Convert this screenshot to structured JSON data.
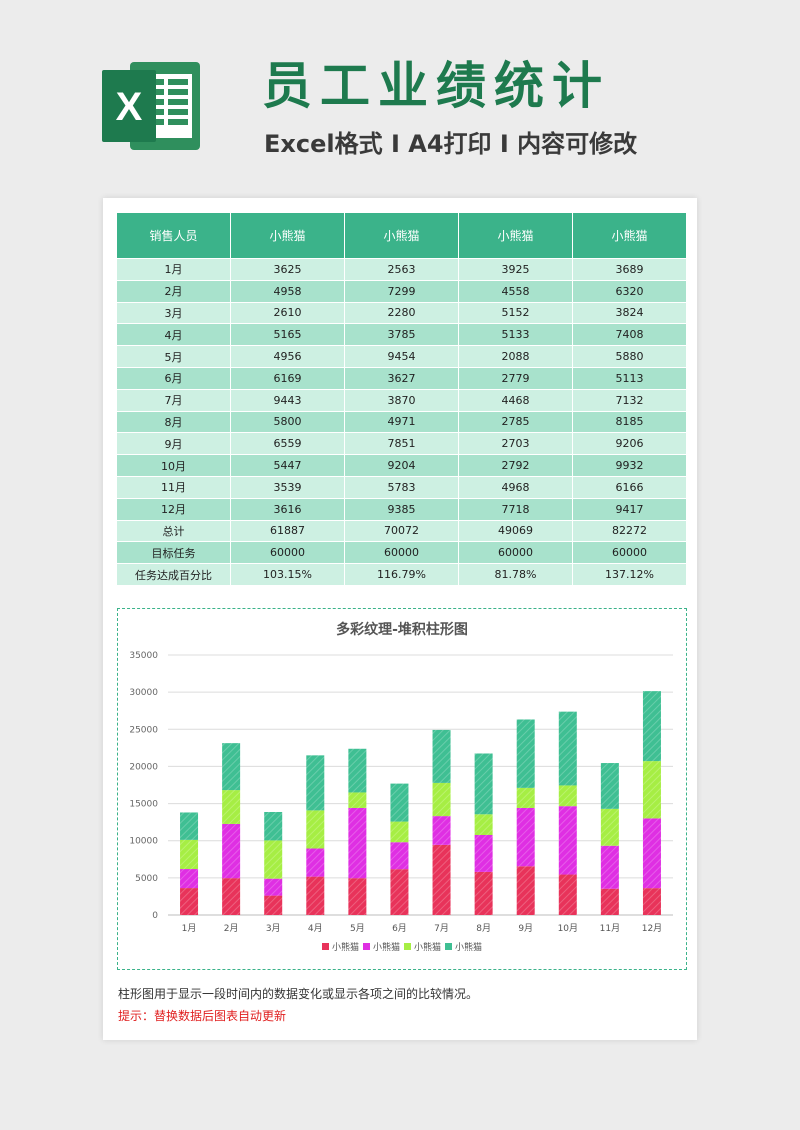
{
  "header": {
    "title": "员工业绩统计",
    "subtitle": "Excel格式 I A4打印 I 内容可修改"
  },
  "logo": {
    "icon": "excel-logo-icon",
    "letter": "X",
    "color": "#1e7a4e"
  },
  "table": {
    "columns": [
      "销售人员",
      "小熊猫",
      "小熊猫",
      "小熊猫",
      "小熊猫"
    ],
    "rows": [
      [
        "1月",
        "3625",
        "2563",
        "3925",
        "3689"
      ],
      [
        "2月",
        "4958",
        "7299",
        "4558",
        "6320"
      ],
      [
        "3月",
        "2610",
        "2280",
        "5152",
        "3824"
      ],
      [
        "4月",
        "5165",
        "3785",
        "5133",
        "7408"
      ],
      [
        "5月",
        "4956",
        "9454",
        "2088",
        "5880"
      ],
      [
        "6月",
        "6169",
        "3627",
        "2779",
        "5113"
      ],
      [
        "7月",
        "9443",
        "3870",
        "4468",
        "7132"
      ],
      [
        "8月",
        "5800",
        "4971",
        "2785",
        "8185"
      ],
      [
        "9月",
        "6559",
        "7851",
        "2703",
        "9206"
      ],
      [
        "10月",
        "5447",
        "9204",
        "2792",
        "9932"
      ],
      [
        "11月",
        "3539",
        "5783",
        "4968",
        "6166"
      ],
      [
        "12月",
        "3616",
        "9385",
        "7718",
        "9417"
      ],
      [
        "总计",
        "61887",
        "70072",
        "49069",
        "82272"
      ],
      [
        "目标任务",
        "60000",
        "60000",
        "60000",
        "60000"
      ],
      [
        "任务达成百分比",
        "103.15%",
        "116.79%",
        "81.78%",
        "137.12%"
      ]
    ],
    "colors": {
      "header": "#3bb38a",
      "row_light": "#cdf0e2",
      "row_dark": "#a8e2cc"
    }
  },
  "chart_data": {
    "type": "bar",
    "stacked": true,
    "title": "多彩纹理-堆积柱形图",
    "categories": [
      "1月",
      "2月",
      "3月",
      "4月",
      "5月",
      "6月",
      "7月",
      "8月",
      "9月",
      "10月",
      "11月",
      "12月"
    ],
    "series": [
      {
        "name": "小熊猫",
        "color": "#e8335a",
        "values": [
          3625,
          4958,
          2610,
          5165,
          4956,
          6169,
          9443,
          5800,
          6559,
          5447,
          3539,
          3616
        ]
      },
      {
        "name": "小熊猫",
        "color": "#df2fe3",
        "values": [
          2563,
          7299,
          2280,
          3785,
          9454,
          3627,
          3870,
          4971,
          7851,
          9204,
          5783,
          9385
        ]
      },
      {
        "name": "小熊猫",
        "color": "#a6ee44",
        "values": [
          3925,
          4558,
          5152,
          5133,
          2088,
          2779,
          4468,
          2785,
          2703,
          2792,
          4968,
          7718
        ]
      },
      {
        "name": "小熊猫",
        "color": "#3fbf93",
        "values": [
          3689,
          6320,
          3824,
          7408,
          5880,
          5113,
          7132,
          8185,
          9206,
          9932,
          6166,
          9417
        ]
      }
    ],
    "ylim": [
      0,
      35000
    ],
    "yticks": [
      "0",
      "5000",
      "10000",
      "15000",
      "20000",
      "25000",
      "30000",
      "35000"
    ],
    "grid": true,
    "legend_position": "bottom",
    "xlabel": "",
    "ylabel": ""
  },
  "notes": {
    "description": "柱形图用于显示一段时间内的数据变化或显示各项之间的比较情况。",
    "tip": "提示：替换数据后图表自动更新"
  }
}
